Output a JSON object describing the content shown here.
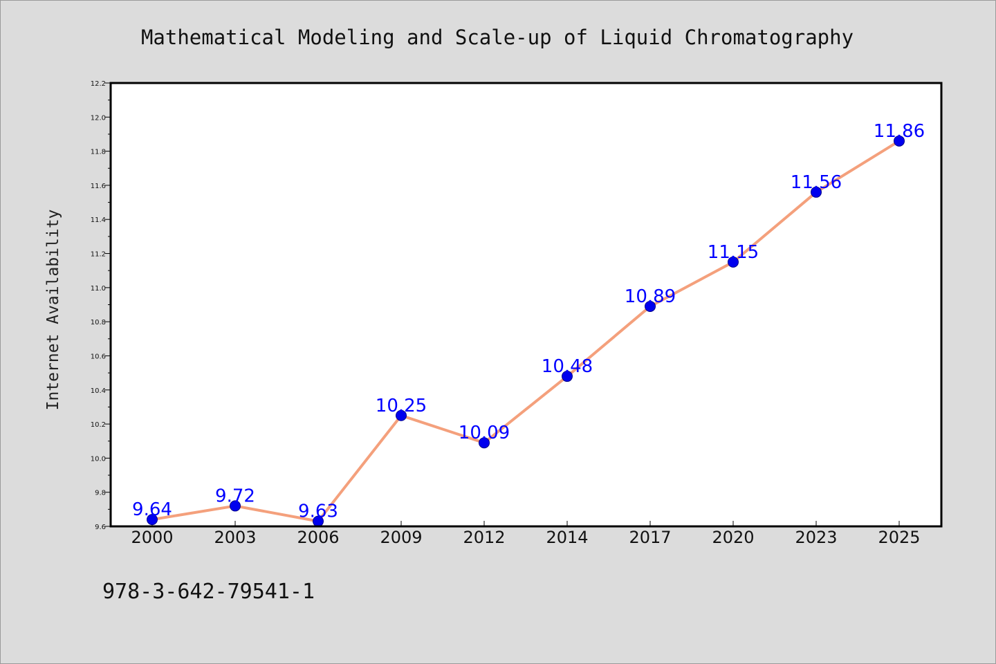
{
  "chart_data": {
    "type": "line",
    "title": "Mathematical Modeling and Scale-up of Liquid Chromatography",
    "xlabel": "",
    "ylabel": "Internet Availability",
    "categories": [
      "2000",
      "2003",
      "2006",
      "2009",
      "2012",
      "2014",
      "2017",
      "2020",
      "2023",
      "2025"
    ],
    "values": [
      9.64,
      9.72,
      9.63,
      10.25,
      10.09,
      10.48,
      10.89,
      11.15,
      11.56,
      11.86
    ],
    "data_labels": [
      "9.64",
      "9.72",
      "9.63",
      "10.25",
      "10.09",
      "10.48",
      "10.89",
      "11.15",
      "11.56",
      "11.86"
    ],
    "ylim": [
      9.6,
      12.2
    ],
    "yticks": [
      9.6,
      9.8,
      10.0,
      10.2,
      10.4,
      10.6,
      10.8,
      11.0,
      11.2,
      11.4,
      11.6,
      11.8,
      12.0,
      12.2
    ],
    "ytick_labels": [
      "9.6",
      "9.8",
      "10.0",
      "10.2",
      "10.4",
      "10.6",
      "10.8",
      "11.0",
      "11.2",
      "11.4",
      "11.6",
      "11.8",
      "12.0",
      "12.2"
    ],
    "grid": false,
    "legend": "none",
    "colors": {
      "line": "#f4a07c",
      "marker": "#0000ee",
      "marker_edge": "#00008b",
      "label": "#0000ff",
      "background": "#dcdcdc",
      "plot_background": "#ffffff"
    }
  },
  "footer": {
    "isbn": "978-3-642-79541-1"
  }
}
